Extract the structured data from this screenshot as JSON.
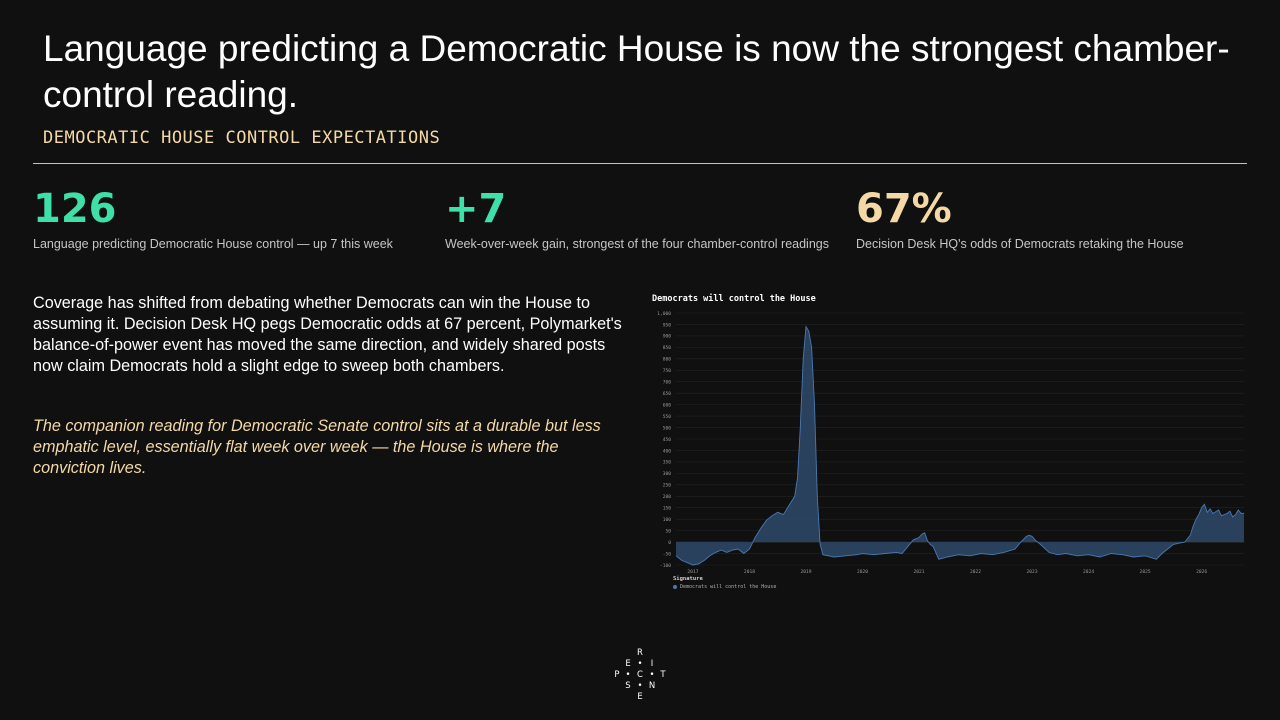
{
  "headline": "Language predicting a Democratic House is now the strongest chamber-control reading.",
  "kicker": "DEMOCRATIC HOUSE CONTROL EXPECTATIONS",
  "stats": [
    {
      "value": "126",
      "caption": "Language predicting Democratic House control — up 7 this week",
      "color": "#3fe0a8"
    },
    {
      "value": "+7",
      "caption": "Week-over-week gain, strongest of the four chamber-control readings",
      "color": "#3fe0a8"
    },
    {
      "value": "67%",
      "caption": "Decision Desk HQ's odds of Democrats retaking the House",
      "color": "#f4d9a6"
    }
  ],
  "body": "Coverage has shifted from debating whether Democrats can win the House to assuming it. Decision Desk HQ pegs Democratic odds at 67 percent, Polymarket's balance-of-power event has moved the same direction, and widely shared posts now claim Democrats hold a slight edge to sweep both chambers.",
  "body_italic": "The companion reading for Democratic Senate control sits at a durable but less emphatic level, essentially flat week over week — the House is where the conviction lives.",
  "chart_data": {
    "type": "area",
    "title": "Democrats will control the House",
    "legend_title": "Signature",
    "series": [
      {
        "name": "Democrats will control the House",
        "color": "#4a78b0"
      }
    ],
    "ylim": [
      -100,
      1000
    ],
    "yticks": [
      "1,000",
      "950",
      "900",
      "850",
      "800",
      "750",
      "700",
      "650",
      "600",
      "550",
      "500",
      "450",
      "400",
      "350",
      "300",
      "250",
      "200",
      "150",
      "100",
      "50",
      "0",
      "-50",
      "-100"
    ],
    "xticks": [
      "2017",
      "2018",
      "2019",
      "2020",
      "2021",
      "2022",
      "2023",
      "2024",
      "2025",
      "2026"
    ],
    "xlim": [
      2016.7,
      2026.75
    ],
    "points": [
      [
        2016.7,
        -60
      ],
      [
        2016.8,
        -80
      ],
      [
        2016.9,
        -90
      ],
      [
        2017.0,
        -100
      ],
      [
        2017.1,
        -95
      ],
      [
        2017.2,
        -80
      ],
      [
        2017.3,
        -60
      ],
      [
        2017.4,
        -45
      ],
      [
        2017.5,
        -35
      ],
      [
        2017.6,
        -45
      ],
      [
        2017.7,
        -35
      ],
      [
        2017.8,
        -30
      ],
      [
        2017.9,
        -50
      ],
      [
        2018.0,
        -30
      ],
      [
        2018.1,
        20
      ],
      [
        2018.2,
        60
      ],
      [
        2018.3,
        95
      ],
      [
        2018.4,
        115
      ],
      [
        2018.5,
        130
      ],
      [
        2018.6,
        120
      ],
      [
        2018.7,
        160
      ],
      [
        2018.8,
        200
      ],
      [
        2018.85,
        280
      ],
      [
        2018.9,
        500
      ],
      [
        2018.95,
        800
      ],
      [
        2019.0,
        940
      ],
      [
        2019.05,
        920
      ],
      [
        2019.1,
        850
      ],
      [
        2019.15,
        600
      ],
      [
        2019.2,
        200
      ],
      [
        2019.25,
        -10
      ],
      [
        2019.3,
        -55
      ],
      [
        2019.5,
        -65
      ],
      [
        2019.7,
        -60
      ],
      [
        2019.9,
        -55
      ],
      [
        2020.0,
        -50
      ],
      [
        2020.2,
        -55
      ],
      [
        2020.4,
        -50
      ],
      [
        2020.6,
        -45
      ],
      [
        2020.7,
        -50
      ],
      [
        2020.8,
        -20
      ],
      [
        2020.9,
        10
      ],
      [
        2021.0,
        20
      ],
      [
        2021.05,
        35
      ],
      [
        2021.1,
        40
      ],
      [
        2021.15,
        5
      ],
      [
        2021.2,
        -10
      ],
      [
        2021.25,
        -20
      ],
      [
        2021.35,
        -75
      ],
      [
        2021.5,
        -65
      ],
      [
        2021.7,
        -55
      ],
      [
        2021.9,
        -60
      ],
      [
        2022.1,
        -50
      ],
      [
        2022.3,
        -55
      ],
      [
        2022.5,
        -45
      ],
      [
        2022.7,
        -30
      ],
      [
        2022.8,
        0
      ],
      [
        2022.9,
        25
      ],
      [
        2022.95,
        30
      ],
      [
        2023.0,
        25
      ],
      [
        2023.05,
        10
      ],
      [
        2023.15,
        -10
      ],
      [
        2023.3,
        -45
      ],
      [
        2023.45,
        -55
      ],
      [
        2023.6,
        -50
      ],
      [
        2023.8,
        -60
      ],
      [
        2024.0,
        -55
      ],
      [
        2024.2,
        -65
      ],
      [
        2024.4,
        -50
      ],
      [
        2024.6,
        -55
      ],
      [
        2024.8,
        -65
      ],
      [
        2025.0,
        -60
      ],
      [
        2025.2,
        -75
      ],
      [
        2025.3,
        -50
      ],
      [
        2025.4,
        -30
      ],
      [
        2025.5,
        -10
      ],
      [
        2025.6,
        -5
      ],
      [
        2025.7,
        0
      ],
      [
        2025.8,
        30
      ],
      [
        2025.85,
        70
      ],
      [
        2025.9,
        100
      ],
      [
        2025.95,
        120
      ],
      [
        2026.0,
        150
      ],
      [
        2026.05,
        165
      ],
      [
        2026.1,
        130
      ],
      [
        2026.15,
        145
      ],
      [
        2026.2,
        125
      ],
      [
        2026.3,
        140
      ],
      [
        2026.35,
        115
      ],
      [
        2026.45,
        125
      ],
      [
        2026.5,
        135
      ],
      [
        2026.55,
        110
      ],
      [
        2026.6,
        120
      ],
      [
        2026.65,
        140
      ],
      [
        2026.7,
        125
      ],
      [
        2026.75,
        126
      ]
    ]
  },
  "logo": {
    "letters": [
      "R",
      "E",
      "I",
      "P",
      "C",
      "T",
      "S",
      "N",
      "E"
    ],
    "dots": "•"
  }
}
